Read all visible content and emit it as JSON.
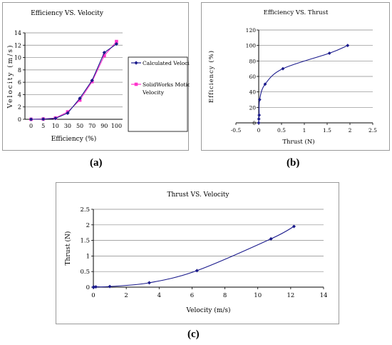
{
  "colors": {
    "series_blue": "#1a1a8c",
    "series_pink": "#ff33cc",
    "grid": "#888888",
    "axis": "#000000"
  },
  "captions": {
    "a": "(a)",
    "b": "(b)",
    "c": "(c)"
  },
  "chart_data": [
    {
      "id": "a",
      "type": "line",
      "title": "Efficiency VS. Velocity",
      "xlabel": "Efficiency (%)",
      "ylabel": "Velocity (m/s)",
      "categories": [
        "0",
        "5",
        "10",
        "30",
        "50",
        "70",
        "90",
        "100"
      ],
      "ylim": [
        0,
        14
      ],
      "yticks": [
        0,
        2,
        4,
        6,
        8,
        10,
        12,
        14
      ],
      "grid": true,
      "legend": "right",
      "series": [
        {
          "name": "Calculated Velocity",
          "color": "#1a1a8c",
          "marker": "diamond",
          "values": [
            0,
            0.03,
            0.15,
            1.0,
            3.4,
            6.3,
            10.8,
            12.2
          ]
        },
        {
          "name": "SolidWorks Motion Velocity",
          "color": "#ff33cc",
          "marker": "square",
          "values": [
            0,
            0.05,
            0.2,
            1.2,
            3.1,
            6.1,
            10.3,
            12.6
          ]
        }
      ]
    },
    {
      "id": "b",
      "type": "scatter",
      "title": "Efficiency VS. Thrust",
      "xlabel": "Thrust (N)",
      "ylabel": "Efficiency (%)",
      "xlim": [
        -0.5,
        2.5
      ],
      "xticks": [
        "-0.5",
        "0",
        "0.5",
        "1",
        "1.5",
        "2",
        "2.5"
      ],
      "ylim": [
        0,
        120
      ],
      "yticks": [
        0,
        20,
        40,
        60,
        80,
        100,
        120
      ],
      "grid": true,
      "series": [
        {
          "name": "",
          "color": "#1a1a8c",
          "x": [
            0,
            0.003,
            0.01,
            0.02,
            0.14,
            0.53,
            1.55,
            1.95
          ],
          "y": [
            0,
            5,
            10,
            30,
            50,
            70,
            90,
            100
          ]
        }
      ]
    },
    {
      "id": "c",
      "type": "scatter",
      "title": "Thrust VS. Velocity",
      "xlabel": "Velocity (m/s)",
      "ylabel": "Thrust (N)",
      "xlim": [
        0,
        14
      ],
      "xticks": [
        "0",
        "2",
        "4",
        "6",
        "8",
        "10",
        "12",
        "14"
      ],
      "ylim": [
        0,
        2.5
      ],
      "yticks": [
        "0",
        "0.5",
        "1",
        "1.5",
        "2",
        "2.5"
      ],
      "grid": true,
      "series": [
        {
          "name": "",
          "color": "#1a1a8c",
          "x": [
            0,
            0.03,
            0.15,
            1.0,
            3.4,
            6.3,
            10.8,
            12.2
          ],
          "y": [
            0,
            0.003,
            0.01,
            0.02,
            0.14,
            0.53,
            1.55,
            1.95
          ]
        }
      ]
    }
  ]
}
